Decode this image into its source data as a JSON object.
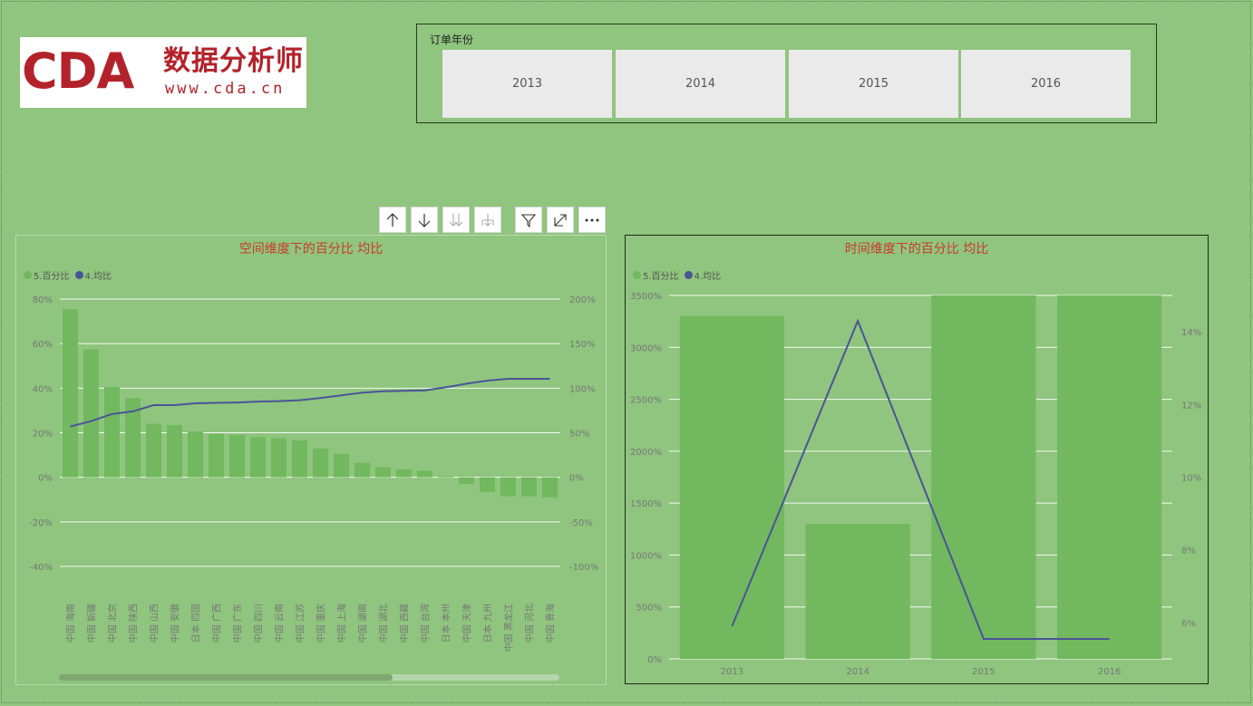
{
  "logo": {
    "mark": "CDA",
    "cn": "数据分析师",
    "url": "www.cda.cn"
  },
  "slicer": {
    "title": "订单年份",
    "options": [
      "2013",
      "2014",
      "2015",
      "2016"
    ]
  },
  "toolbar": [
    {
      "name": "sort-asc-icon",
      "glyph": "↑"
    },
    {
      "name": "sort-desc-icon",
      "glyph": "↓"
    },
    {
      "name": "expand-all-icon",
      "glyph": "⇊"
    },
    {
      "name": "drill-down-icon",
      "glyph": "⊥"
    },
    {
      "name": "filter-icon",
      "glyph": "⊽"
    },
    {
      "name": "focus-mode-icon",
      "glyph": "⤢"
    },
    {
      "name": "more-options-icon",
      "glyph": "···"
    }
  ],
  "colors": {
    "bar": "#72b85e",
    "line": "#4b5496",
    "title": "#cc3a2a"
  },
  "chart_data": [
    {
      "type": "bar+line",
      "title": "空间维度下的百分比 均比",
      "legend": [
        "5.百分比",
        "4.均比"
      ],
      "legend_position": "top-left",
      "categories": [
        "中国 海南",
        "中国 新疆",
        "中国 北京",
        "中国 陕西",
        "中国 山西",
        "中国 安徽",
        "日本 四国",
        "中国 广西",
        "中国 广东",
        "中国 四川",
        "中国 云南",
        "中国 江苏",
        "中国 重庆",
        "中国 上海",
        "中国 湖南",
        "中国 湖北",
        "中国 西藏",
        "中国 台湾",
        "日本 本州",
        "中国 天津",
        "日本 九州",
        "中国 黑龙江",
        "中国 河北",
        "中国 青海"
      ],
      "series": [
        {
          "name": "5.百分比",
          "axis": "left",
          "values": [
            75.5,
            57.5,
            40.5,
            35.5,
            24,
            23.5,
            20.5,
            19.5,
            19,
            18,
            17.5,
            16.5,
            13,
            10.5,
            6.5,
            4.5,
            3.5,
            3,
            0.5,
            -3,
            -6.5,
            -8.5,
            -8.5,
            -9
          ]
        },
        {
          "name": "4.均比",
          "axis": "right",
          "values": [
            57,
            63,
            71,
            74,
            81,
            81,
            83,
            83.5,
            84,
            85,
            85.5,
            86.5,
            89,
            92,
            95,
            96.5,
            97,
            97.5,
            101,
            105,
            108.5,
            110.5,
            110.5,
            110.5
          ]
        }
      ],
      "y_left": {
        "min": -40,
        "max": 80,
        "ticks": [
          80,
          60,
          40,
          20,
          0,
          -20,
          -40
        ],
        "ticklabels": [
          "80%",
          "60%",
          "40%",
          "20%",
          "0%",
          "-20%",
          "-40%"
        ]
      },
      "y_right": {
        "min": -100,
        "max": 200,
        "ticks": [
          200,
          150,
          100,
          50,
          0,
          -50,
          -100
        ],
        "ticklabels": [
          "200%",
          "150%",
          "100%",
          "50%",
          "0%",
          "-50%",
          "-100%"
        ]
      },
      "grid": true
    },
    {
      "type": "bar+line",
      "title": "时间维度下的百分比 均比",
      "legend": [
        "5.百分比",
        "4.均比"
      ],
      "legend_position": "top-left",
      "categories": [
        "2013",
        "2014",
        "2015",
        "2016"
      ],
      "series": [
        {
          "name": "5.百分比",
          "axis": "left",
          "values": [
            3300,
            1300,
            3500,
            3500
          ]
        },
        {
          "name": "4.均比",
          "axis": "right",
          "values": [
            5.9,
            14.3,
            5.55,
            5.55
          ]
        }
      ],
      "y_left": {
        "min": 0,
        "max": 3500,
        "ticks": [
          3500,
          3000,
          2500,
          2000,
          1500,
          1000,
          500,
          0
        ],
        "ticklabels": [
          "3500%",
          "3000%",
          "2500%",
          "2000%",
          "1500%",
          "1000%",
          "500%",
          "0%"
        ]
      },
      "y_right": {
        "min": 5,
        "max": 15,
        "ticks": [
          14,
          12,
          10,
          8,
          6
        ],
        "ticklabels": [
          "14%",
          "12%",
          "10%",
          "8%",
          "6%"
        ]
      },
      "grid": true
    }
  ]
}
